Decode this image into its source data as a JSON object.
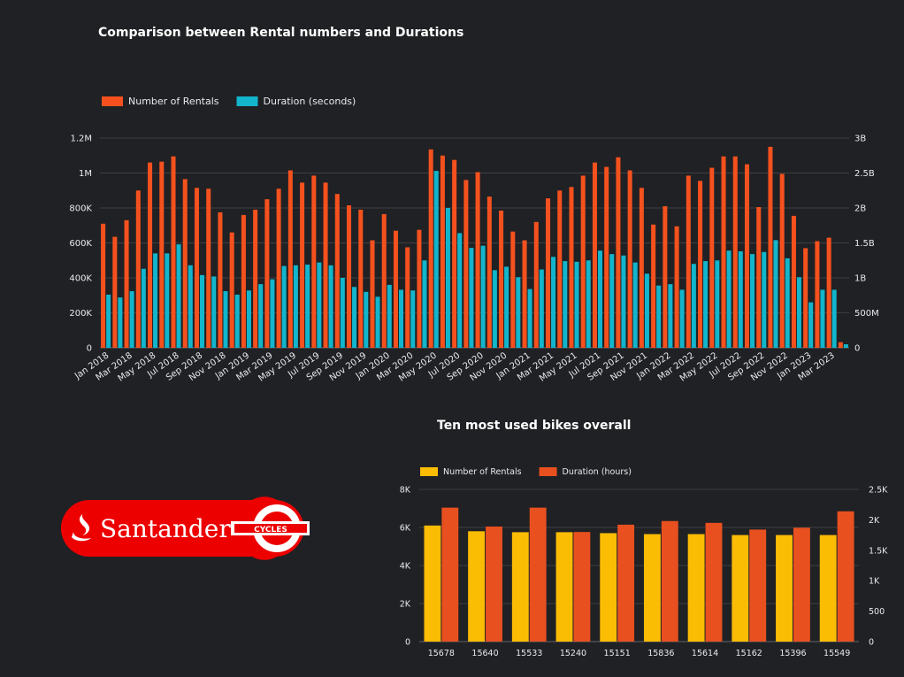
{
  "chart_data": [
    {
      "type": "bar",
      "title": "Comparison between Rental numbers and Durations",
      "legend_position": "top-left",
      "grid": true,
      "colors": {
        "rentals": "#f4511e",
        "duration": "#12b5cb"
      },
      "categories": [
        "Jan 2018",
        "Feb 2018",
        "Mar 2018",
        "Apr 2018",
        "May 2018",
        "Jun 2018",
        "Jul 2018",
        "Aug 2018",
        "Sep 2018",
        "Oct 2018",
        "Nov 2018",
        "Dec 2018",
        "Jan 2019",
        "Feb 2019",
        "Mar 2019",
        "Apr 2019",
        "May 2019",
        "Jun 2019",
        "Jul 2019",
        "Aug 2019",
        "Sep 2019",
        "Oct 2019",
        "Nov 2019",
        "Dec 2019",
        "Jan 2020",
        "Feb 2020",
        "Mar 2020",
        "Apr 2020",
        "May 2020",
        "Jun 2020",
        "Jul 2020",
        "Aug 2020",
        "Sep 2020",
        "Oct 2020",
        "Nov 2020",
        "Dec 2020",
        "Jan 2021",
        "Feb 2021",
        "Mar 2021",
        "Apr 2021",
        "May 2021",
        "Jun 2021",
        "Jul 2021",
        "Aug 2021",
        "Sep 2021",
        "Oct 2021",
        "Nov 2021",
        "Dec 2021",
        "Jan 2022",
        "Feb 2022",
        "Mar 2022",
        "Apr 2022",
        "May 2022",
        "Jun 2022",
        "Jul 2022",
        "Aug 2022",
        "Sep 2022",
        "Oct 2022",
        "Nov 2022",
        "Dec 2022",
        "Jan 2023",
        "Feb 2023",
        "Mar 2023",
        "Apr 2023"
      ],
      "tick_labels": [
        "Jan 2018",
        "Mar 2018",
        "May 2018",
        "Jul 2018",
        "Sep 2018",
        "Nov 2018",
        "Jan 2019",
        "Mar 2019",
        "May 2019",
        "Jul 2019",
        "Sep 2019",
        "Nov 2019",
        "Jan 2020",
        "Mar 2020",
        "May 2020",
        "Jul 2020",
        "Sep 2020",
        "Nov 2020",
        "Jan 2021",
        "Mar 2021",
        "May 2021",
        "Jul 2021",
        "Sep 2021",
        "Nov 2021",
        "Jan 2022",
        "Mar 2022",
        "May 2022",
        "Jul 2022",
        "Sep 2022",
        "Nov 2022",
        "Jan 2023",
        "Mar 2023"
      ],
      "series": [
        {
          "name": "Number of Rentals",
          "axis": "left",
          "values": [
            710000,
            635000,
            730000,
            900000,
            1060000,
            1065000,
            1095000,
            965000,
            915000,
            910000,
            775000,
            660000,
            760000,
            790000,
            850000,
            910000,
            1015000,
            945000,
            985000,
            945000,
            880000,
            815000,
            790000,
            615000,
            765000,
            670000,
            575000,
            675000,
            1135000,
            1100000,
            1075000,
            960000,
            1005000,
            865000,
            785000,
            665000,
            615000,
            720000,
            855000,
            900000,
            920000,
            985000,
            1060000,
            1035000,
            1090000,
            1015000,
            915000,
            705000,
            810000,
            695000,
            985000,
            955000,
            1030000,
            1095000,
            1095000,
            1050000,
            805000,
            1150000,
            995000,
            755000,
            570000,
            610000,
            630000,
            32000
          ]
        },
        {
          "name": "Duration (seconds)",
          "axis": "right",
          "values": [
            760000000,
            720000000,
            810000000,
            1130000000,
            1350000000,
            1350000000,
            1480000000,
            1180000000,
            1040000000,
            1020000000,
            810000000,
            760000000,
            820000000,
            910000000,
            980000000,
            1170000000,
            1180000000,
            1190000000,
            1220000000,
            1180000000,
            1000000000,
            870000000,
            800000000,
            730000000,
            900000000,
            830000000,
            820000000,
            1250000000,
            2530000000,
            2000000000,
            1640000000,
            1430000000,
            1460000000,
            1110000000,
            1160000000,
            1010000000,
            840000000,
            1120000000,
            1300000000,
            1240000000,
            1230000000,
            1250000000,
            1390000000,
            1340000000,
            1320000000,
            1220000000,
            1060000000,
            890000000,
            910000000,
            830000000,
            1200000000,
            1240000000,
            1250000000,
            1390000000,
            1380000000,
            1340000000,
            1370000000,
            1540000000,
            1280000000,
            1010000000,
            650000000,
            830000000,
            830000000,
            50000000
          ]
        }
      ],
      "ylim_left": [
        0,
        1200000
      ],
      "yticks_left": [
        "0",
        "200K",
        "400K",
        "600K",
        "800K",
        "1M",
        "1.2M"
      ],
      "ylim_right": [
        0,
        3000000000
      ],
      "yticks_right": [
        "0",
        "500M",
        "1B",
        "1.5B",
        "2B",
        "2.5B",
        "3B"
      ]
    },
    {
      "type": "bar",
      "title": "Ten most used bikes overall",
      "legend_position": "top-left",
      "grid": true,
      "colors": {
        "rentals": "#fbbc04",
        "duration": "#e8501f"
      },
      "categories": [
        "15678",
        "15640",
        "15533",
        "15240",
        "15151",
        "15836",
        "15614",
        "15162",
        "15396",
        "15549"
      ],
      "series": [
        {
          "name": "Number of Rentals",
          "axis": "left",
          "values": [
            6100,
            5800,
            5750,
            5750,
            5700,
            5650,
            5650,
            5600,
            5600,
            5600
          ]
        },
        {
          "name": "Duration (hours)",
          "axis": "right",
          "values": [
            2200,
            1890,
            2200,
            1800,
            1920,
            1980,
            1950,
            1840,
            1870,
            2140
          ]
        }
      ],
      "ylim_left": [
        0,
        8000
      ],
      "yticks_left": [
        "0",
        "2K",
        "4K",
        "6K",
        "8K"
      ],
      "ylim_right": [
        0,
        2500
      ],
      "yticks_right": [
        "0",
        "500",
        "1K",
        "1.5K",
        "2K",
        "2.5K"
      ]
    }
  ],
  "logo": {
    "brand": "Santander",
    "sub": "CYCLES",
    "color": "#ec0000"
  }
}
